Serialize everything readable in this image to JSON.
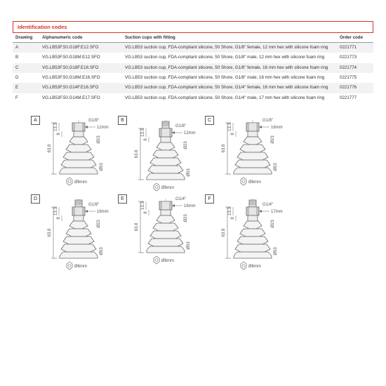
{
  "section_title": "Identification codes",
  "columns": {
    "c0": "Drawing",
    "c1": "Alphanumeric code",
    "c2": "Suction cups with fitting",
    "c3": "Order code"
  },
  "rows": [
    {
      "drawing": "A",
      "code": "VG.LB53F.50.G18F.E12.SFO",
      "desc": "VG.LB53 suction cup, FDA-compliant silicone, 50 Shore, G1/8\" female, 12 mm hex with silicone foam ring",
      "order": "0221771"
    },
    {
      "drawing": "B",
      "code": "VG.LB53F.50.G18M.E12.SFO",
      "desc": "VG.LB53 suction cup, FDA-compliant silicone, 50 Shore, G1/8\" male, 12 mm hex with silicone foam ring",
      "order": "0221773"
    },
    {
      "drawing": "C",
      "code": "VG.LB53F.50.G18F.E16.SFO",
      "desc": "VG.LB53 suction cup, FDA-compliant silicone, 50 Shore, G1/8\" female, 16 mm hex with silicone foam ring",
      "order": "0221774"
    },
    {
      "drawing": "D",
      "code": "VG.LB53F.50.G18M.E16.SFO",
      "desc": "VG.LB53 suction cup, FDA-compliant silicone, 50 Shore, G1/8\" male, 16 mm hex with silicone foam ring",
      "order": "0221775"
    },
    {
      "drawing": "E",
      "code": "VG.LB53F.50.G14F.E16.SFO",
      "desc": "VG.LB53 suction cup, FDA-compliant silicone, 50 Shore, G1/4\" female, 16 mm hex with silicone foam ring",
      "order": "0221776"
    },
    {
      "drawing": "F",
      "code": "VG.LB53F.50.G14M.E17.SFO",
      "desc": "VG.LB53 suction cup, FDA-compliant silicone, 50 Shore, G1/4\" male, 17 mm hex with silicone foam ring",
      "order": "0221777"
    }
  ],
  "drawings": [
    {
      "letter": "A",
      "thread": "G1/8\"",
      "hex": "12mm",
      "height": "63.8",
      "dia_top": "Ø23",
      "dia_bottom": "Ø53",
      "orifice": "Ø6mm",
      "top_h": "13.3",
      "neck_h": "8",
      "male": false
    },
    {
      "letter": "B",
      "thread": "G1/8\"",
      "hex": "12mm",
      "height": "63.8",
      "dia_top": "Ø23",
      "dia_bottom": "Ø53",
      "orifice": "Ø6mm",
      "top_h": "13.3",
      "neck_h": "8",
      "male": true
    },
    {
      "letter": "C",
      "thread": "G1/8\"",
      "hex": "16mm",
      "height": "63.8",
      "dia_top": "Ø23",
      "dia_bottom": "Ø53",
      "orifice": "Ø6mm",
      "top_h": "13.3",
      "neck_h": "8",
      "male": false
    },
    {
      "letter": "D",
      "thread": "G1/8\"",
      "hex": "16mm",
      "height": "63.8",
      "dia_top": "Ø23",
      "dia_bottom": "Ø53",
      "orifice": "Ø6mm",
      "top_h": "13.3",
      "neck_h": "8",
      "male": true
    },
    {
      "letter": "E",
      "thread": "G1/4\"",
      "hex": "16mm",
      "height": "63.8",
      "dia_top": "Ø23",
      "dia_bottom": "Ø53",
      "orifice": "Ø6mm",
      "top_h": "13.3",
      "neck_h": "8",
      "male": false
    },
    {
      "letter": "F",
      "thread": "G1/4\"",
      "hex": "17mm",
      "height": "63.8",
      "dia_top": "Ø23",
      "dia_bottom": "Ø53",
      "orifice": "Ø6mm",
      "top_h": "13.3",
      "neck_h": "8",
      "male": true
    }
  ],
  "style": {
    "accent": "#d9332a",
    "zebra": "#f2f2f2",
    "stroke": "#6a6a6a",
    "stroke_width": 0.8,
    "text_color": "#555555"
  }
}
